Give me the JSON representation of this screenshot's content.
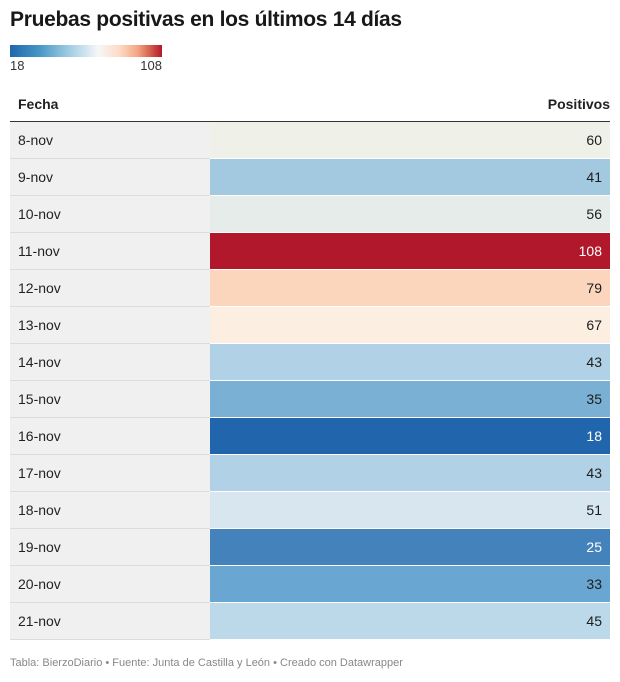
{
  "title": "Pruebas positivas en los últimos 14 días",
  "legend": {
    "min_label": "18",
    "max_label": "108",
    "colors": [
      "#2166ac",
      "#f7f7f7",
      "#b2182b"
    ]
  },
  "table": {
    "headers": {
      "fecha": "Fecha",
      "positivos": "Positivos"
    }
  },
  "footer": "Tabla: BierzoDiario • Fuente: Junta de Castilla y León • Creado con Datawrapper",
  "chart_data": {
    "type": "table",
    "title": "Pruebas positivas en los últimos 14 días",
    "columns": [
      "Fecha",
      "Positivos"
    ],
    "color_scale": {
      "min": 18,
      "max": 108,
      "low_color": "#2166ac",
      "mid_color": "#f7f7f7",
      "high_color": "#b2182b"
    },
    "rows": [
      {
        "fecha": "8-nov",
        "positivos": 60,
        "color": "#eff1e8"
      },
      {
        "fecha": "9-nov",
        "positivos": 41,
        "color": "#a3c9e1"
      },
      {
        "fecha": "10-nov",
        "positivos": 56,
        "color": "#e6ecea"
      },
      {
        "fecha": "11-nov",
        "positivos": 108,
        "color": "#b2182b"
      },
      {
        "fecha": "12-nov",
        "positivos": 79,
        "color": "#fbd6bd"
      },
      {
        "fecha": "13-nov",
        "positivos": 67,
        "color": "#fcefe1"
      },
      {
        "fecha": "14-nov",
        "positivos": 43,
        "color": "#b0d1e6"
      },
      {
        "fecha": "15-nov",
        "positivos": 35,
        "color": "#7ab0d4"
      },
      {
        "fecha": "16-nov",
        "positivos": 18,
        "color": "#2166ac"
      },
      {
        "fecha": "17-nov",
        "positivos": 43,
        "color": "#b0d1e6"
      },
      {
        "fecha": "18-nov",
        "positivos": 51,
        "color": "#d8e6ef"
      },
      {
        "fecha": "19-nov",
        "positivos": 25,
        "color": "#4382bb"
      },
      {
        "fecha": "20-nov",
        "positivos": 33,
        "color": "#69a6d1"
      },
      {
        "fecha": "21-nov",
        "positivos": 45,
        "color": "#bcd9ea"
      }
    ]
  }
}
